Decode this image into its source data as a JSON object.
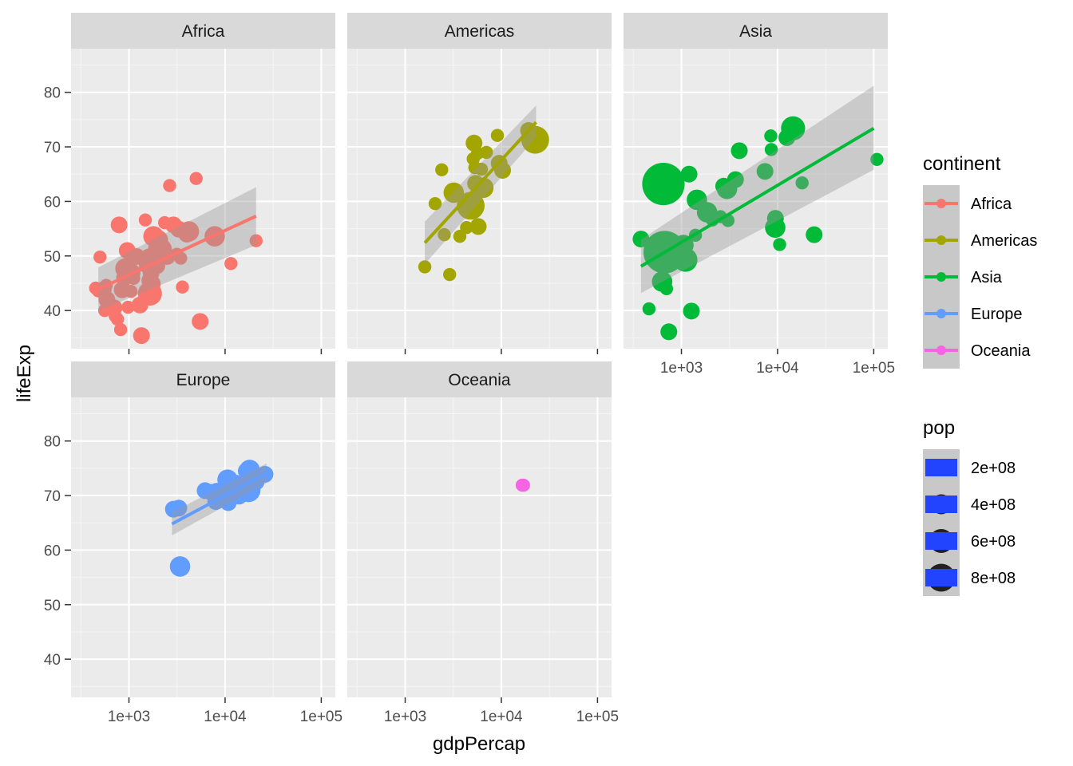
{
  "chart_data": {
    "type": "scatter",
    "facet_by": "continent",
    "xlabel": "gdpPercap",
    "ylabel": "lifeExp",
    "x_scale": "log10",
    "xlim": [
      250,
      140000
    ],
    "ylim": [
      33,
      88
    ],
    "x_ticks": [
      1000,
      10000,
      100000
    ],
    "x_tick_labels": [
      "1e+03",
      "1e+04",
      "1e+05"
    ],
    "y_ticks": [
      40,
      50,
      60,
      70,
      80
    ],
    "y_tick_labels": [
      "40",
      "50",
      "60",
      "70",
      "80"
    ],
    "smooth": "lm with confidence band",
    "panels": [
      {
        "name": "Africa",
        "color": "#F8766D",
        "fit": {
          "x": [
            480,
            21000
          ],
          "y": [
            43.9,
            57.3
          ],
          "band_low": [
            39.9,
            52.0
          ],
          "band_high": [
            47.9,
            62.6
          ]
        },
        "points": [
          [
            450,
            44.1,
            2
          ],
          [
            480,
            43.6,
            2
          ],
          [
            500,
            49.8,
            2
          ],
          [
            540,
            43.8,
            3
          ],
          [
            560,
            40.0,
            2
          ],
          [
            580,
            44.6,
            2
          ],
          [
            590,
            42.0,
            3
          ],
          [
            620,
            40.3,
            2
          ],
          [
            700,
            40.5,
            3
          ],
          [
            720,
            39.0,
            2
          ],
          [
            760,
            38.4,
            2
          ],
          [
            790,
            55.7,
            3
          ],
          [
            820,
            36.5,
            2
          ],
          [
            850,
            43.8,
            3
          ],
          [
            900,
            46.0,
            3
          ],
          [
            920,
            47.7,
            4
          ],
          [
            960,
            51.0,
            3
          ],
          [
            980,
            40.6,
            2
          ],
          [
            1050,
            43.5,
            2
          ],
          [
            1080,
            47.0,
            3
          ],
          [
            1120,
            45.9,
            2
          ],
          [
            1200,
            49.9,
            3
          ],
          [
            1300,
            41.0,
            3
          ],
          [
            1350,
            35.4,
            3
          ],
          [
            1480,
            56.6,
            2
          ],
          [
            1550,
            48.3,
            3
          ],
          [
            1600,
            49.8,
            3
          ],
          [
            1650,
            43.1,
            5
          ],
          [
            1650,
            45.5,
            3
          ],
          [
            1700,
            46.9,
            3
          ],
          [
            1750,
            44.9,
            3
          ],
          [
            1800,
            53.6,
            4
          ],
          [
            1950,
            48.2,
            3
          ],
          [
            2000,
            52.9,
            4
          ],
          [
            2100,
            51.1,
            5
          ],
          [
            2350,
            56.1,
            2
          ],
          [
            2500,
            49.9,
            3
          ],
          [
            2650,
            62.9,
            2
          ],
          [
            2900,
            55.7,
            3
          ],
          [
            3150,
            50.3,
            2
          ],
          [
            3300,
            54.9,
            3
          ],
          [
            3450,
            49.6,
            2
          ],
          [
            3600,
            44.3,
            2
          ],
          [
            4000,
            54.0,
            3
          ],
          [
            4200,
            54.5,
            4
          ],
          [
            5000,
            64.2,
            2
          ],
          [
            5500,
            38.0,
            3
          ],
          [
            7800,
            53.6,
            4
          ],
          [
            11500,
            48.6,
            2
          ],
          [
            21000,
            52.8,
            2
          ]
        ]
      },
      {
        "name": "Americas",
        "color": "#A3A500",
        "fit": {
          "x": [
            1600,
            23000
          ],
          "y": [
            52.4,
            74.5
          ],
          "band_low": [
            48.5,
            71.7
          ],
          "band_high": [
            56.3,
            77.6
          ]
        },
        "points": [
          [
            1600,
            48.0,
            2
          ],
          [
            2050,
            59.6,
            2
          ],
          [
            2400,
            65.8,
            2
          ],
          [
            2550,
            53.9,
            2
          ],
          [
            2900,
            46.6,
            2
          ],
          [
            3200,
            61.6,
            4
          ],
          [
            3700,
            53.6,
            2
          ],
          [
            4350,
            55.2,
            2
          ],
          [
            4800,
            59.2,
            6
          ],
          [
            4900,
            58.6,
            3
          ],
          [
            5100,
            67.8,
            2
          ],
          [
            5200,
            70.7,
            3
          ],
          [
            5300,
            66.2,
            2
          ],
          [
            5400,
            63.3,
            3
          ],
          [
            5650,
            68.8,
            2
          ],
          [
            5750,
            55.4,
            3
          ],
          [
            6200,
            65.9,
            2
          ],
          [
            6500,
            62.5,
            4
          ],
          [
            7000,
            69.0,
            2
          ],
          [
            9100,
            72.1,
            2
          ],
          [
            9500,
            67.0,
            3
          ],
          [
            10300,
            65.7,
            3
          ],
          [
            19200,
            73.0,
            3
          ],
          [
            22500,
            71.3,
            6
          ]
        ]
      },
      {
        "name": "Asia",
        "color": "#00BA38",
        "fit": {
          "x": [
            380,
            100000
          ],
          "y": [
            48.1,
            73.4
          ],
          "band_low": [
            43.2,
            65.8
          ],
          "band_high": [
            53.0,
            81.2
          ]
        },
        "points": [
          [
            380,
            53.1,
            3
          ],
          [
            460,
            40.3,
            2
          ],
          [
            630,
            45.3,
            4
          ],
          [
            650,
            63.2,
            10
          ],
          [
            670,
            50.7,
            10
          ],
          [
            700,
            44.0,
            2
          ],
          [
            740,
            36.1,
            3
          ],
          [
            1050,
            52.0,
            4
          ],
          [
            1100,
            49.3,
            5
          ],
          [
            1200,
            65.0,
            3
          ],
          [
            1270,
            39.9,
            3
          ],
          [
            1400,
            53.8,
            2
          ],
          [
            1450,
            60.3,
            4
          ],
          [
            1850,
            58.0,
            4
          ],
          [
            2100,
            56.6,
            2
          ],
          [
            2550,
            57.2,
            2
          ],
          [
            2750,
            62.8,
            3
          ],
          [
            2980,
            62.3,
            4
          ],
          [
            3050,
            56.5,
            2
          ],
          [
            3650,
            64.0,
            3
          ],
          [
            4000,
            69.3,
            3
          ],
          [
            7400,
            65.5,
            3
          ],
          [
            8500,
            72.0,
            2
          ],
          [
            8600,
            69.5,
            2
          ],
          [
            9450,
            55.2,
            4
          ],
          [
            9500,
            56.9,
            3
          ],
          [
            10500,
            52.1,
            2
          ],
          [
            12500,
            71.7,
            3
          ],
          [
            14500,
            73.4,
            5
          ],
          [
            18000,
            63.4,
            2
          ],
          [
            24000,
            53.9,
            3
          ],
          [
            108000,
            67.7,
            2
          ]
        ]
      },
      {
        "name": "Europe",
        "color": "#619CFF",
        "fit": {
          "x": [
            2800,
            27000
          ],
          "y": [
            64.8,
            74.1
          ],
          "band_low": [
            62.7,
            72.3
          ],
          "band_high": [
            66.9,
            75.9
          ]
        },
        "points": [
          [
            2900,
            67.5,
            3
          ],
          [
            3300,
            67.7,
            3
          ],
          [
            3400,
            57.0,
            4
          ],
          [
            6200,
            70.9,
            3
          ],
          [
            7200,
            70.6,
            3
          ],
          [
            8000,
            68.9,
            3
          ],
          [
            8200,
            70.8,
            3
          ],
          [
            8500,
            69.5,
            4
          ],
          [
            9000,
            70.1,
            3
          ],
          [
            9500,
            69.9,
            3
          ],
          [
            10000,
            71.1,
            3
          ],
          [
            10600,
            72.9,
            4
          ],
          [
            10800,
            68.7,
            3
          ],
          [
            11400,
            71.9,
            3
          ],
          [
            12000,
            70.9,
            3
          ],
          [
            12800,
            72.3,
            3
          ],
          [
            13500,
            70.4,
            4
          ],
          [
            14000,
            69.9,
            3
          ],
          [
            15000,
            72.0,
            3
          ],
          [
            16000,
            72.5,
            3
          ],
          [
            16600,
            74.5,
            3
          ],
          [
            17500,
            71.0,
            5
          ],
          [
            18000,
            74.7,
            4
          ],
          [
            20000,
            73.8,
            3
          ],
          [
            21000,
            72.5,
            3
          ],
          [
            26000,
            73.9,
            3
          ]
        ]
      },
      {
        "name": "Oceania",
        "color": "#F564E3",
        "fit": null,
        "points": [
          [
            16500,
            71.9,
            2
          ],
          [
            17000,
            71.9,
            2
          ]
        ]
      }
    ],
    "legend": {
      "continent_title": "continent",
      "continent_entries": [
        "Africa",
        "Americas",
        "Asia",
        "Europe",
        "Oceania"
      ],
      "continent_colors": [
        "#F8766D",
        "#A3A500",
        "#00BA38",
        "#619CFF",
        "#F564E3"
      ],
      "size_title": "pop",
      "size_entries": [
        "2e+08",
        "4e+08",
        "6e+08",
        "8e+08"
      ],
      "size_values": [
        200000000,
        400000000,
        600000000,
        800000000
      ],
      "size_key_color": "#2244FF"
    }
  }
}
